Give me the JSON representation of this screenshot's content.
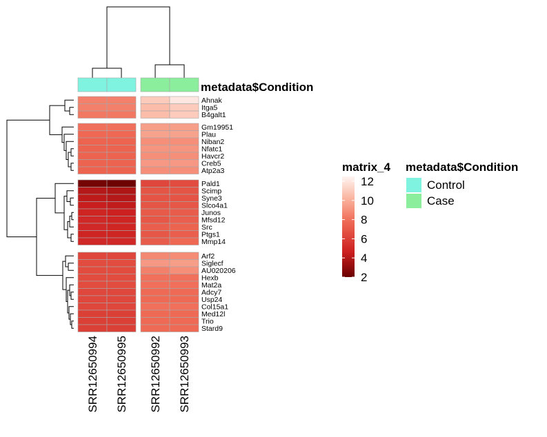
{
  "chart_data": {
    "type": "heatmap",
    "samples": [
      "SRR12650994",
      "SRR12650995",
      "SRR12650992",
      "SRR12650993"
    ],
    "sample_condition": [
      "Control",
      "Control",
      "Case",
      "Case"
    ],
    "annotation_title": "metadata$Condition",
    "gene_clusters": [
      {
        "genes": [
          "Ahnak",
          "Itga5",
          "B4galt1"
        ],
        "values": [
          [
            8.5,
            8.5,
            11.0,
            12.0
          ],
          [
            8.5,
            8.5,
            10.5,
            11.0
          ],
          [
            8.3,
            8.3,
            10.5,
            11.0
          ]
        ]
      },
      {
        "genes": [
          "Gm19951",
          "Plau",
          "Niban2",
          "Nfatc1",
          "Havcr2",
          "Creb5",
          "Atp2a3"
        ],
        "values": [
          [
            8.0,
            8.0,
            9.5,
            9.5
          ],
          [
            7.7,
            7.7,
            9.6,
            9.6
          ],
          [
            7.5,
            7.5,
            9.0,
            9.0
          ],
          [
            7.5,
            7.5,
            9.2,
            9.2
          ],
          [
            7.5,
            7.5,
            9.0,
            9.0
          ],
          [
            7.5,
            7.5,
            9.3,
            9.3
          ],
          [
            7.5,
            7.5,
            9.0,
            9.0
          ]
        ]
      },
      {
        "genes": [
          "Pald1",
          "Scimp",
          "Syne3",
          "Slco4a1",
          "Junos",
          "Mfsd12",
          "Src",
          "Ptgs1",
          "Mmp14"
        ],
        "values": [
          [
            2.3,
            2.1,
            6.3,
            6.5
          ],
          [
            4.0,
            3.8,
            6.9,
            6.9
          ],
          [
            4.2,
            4.0,
            6.8,
            6.8
          ],
          [
            4.5,
            4.3,
            6.9,
            7.0
          ],
          [
            4.8,
            4.6,
            7.1,
            7.2
          ],
          [
            5.0,
            4.8,
            7.0,
            7.3
          ],
          [
            5.0,
            4.9,
            7.3,
            7.5
          ],
          [
            4.8,
            4.8,
            7.0,
            7.3
          ],
          [
            5.0,
            5.0,
            7.2,
            7.7
          ]
        ]
      },
      {
        "genes": [
          "Arf2",
          "Siglecf",
          "AU020206",
          "Hexb",
          "Mat2a",
          "Adcy7",
          "Usp24",
          "Col15a1",
          "Med12l",
          "Trio",
          "Stard9"
        ],
        "values": [
          [
            6.3,
            6.3,
            8.8,
            8.9
          ],
          [
            6.5,
            6.5,
            9.3,
            9.5
          ],
          [
            6.5,
            6.5,
            8.5,
            9.0
          ],
          [
            6.5,
            6.5,
            8.0,
            8.0
          ],
          [
            6.5,
            6.5,
            8.0,
            8.0
          ],
          [
            6.3,
            6.3,
            7.8,
            7.8
          ],
          [
            6.3,
            6.3,
            7.8,
            7.8
          ],
          [
            6.3,
            6.3,
            8.0,
            8.0
          ],
          [
            6.0,
            6.0,
            7.8,
            7.8
          ],
          [
            6.0,
            6.0,
            7.8,
            7.8
          ],
          [
            6.0,
            6.0,
            7.8,
            7.8
          ]
        ]
      }
    ],
    "color_legend": {
      "title": "matrix_4",
      "ticks": [
        "12",
        "10",
        "8",
        "6",
        "4",
        "2"
      ],
      "range": [
        2,
        12.5
      ],
      "colors": {
        "low": "#6a0000",
        "mid_low": "#cc1f1f",
        "mid": "#ef6a55",
        "mid_high": "#fab49e",
        "high": "#fff5f2"
      }
    },
    "condition_legend": {
      "title": "metadata$Condition",
      "items": [
        {
          "label": "Control",
          "color": "#80f3e0"
        },
        {
          "label": "Case",
          "color": "#8aee9c"
        }
      ]
    }
  }
}
